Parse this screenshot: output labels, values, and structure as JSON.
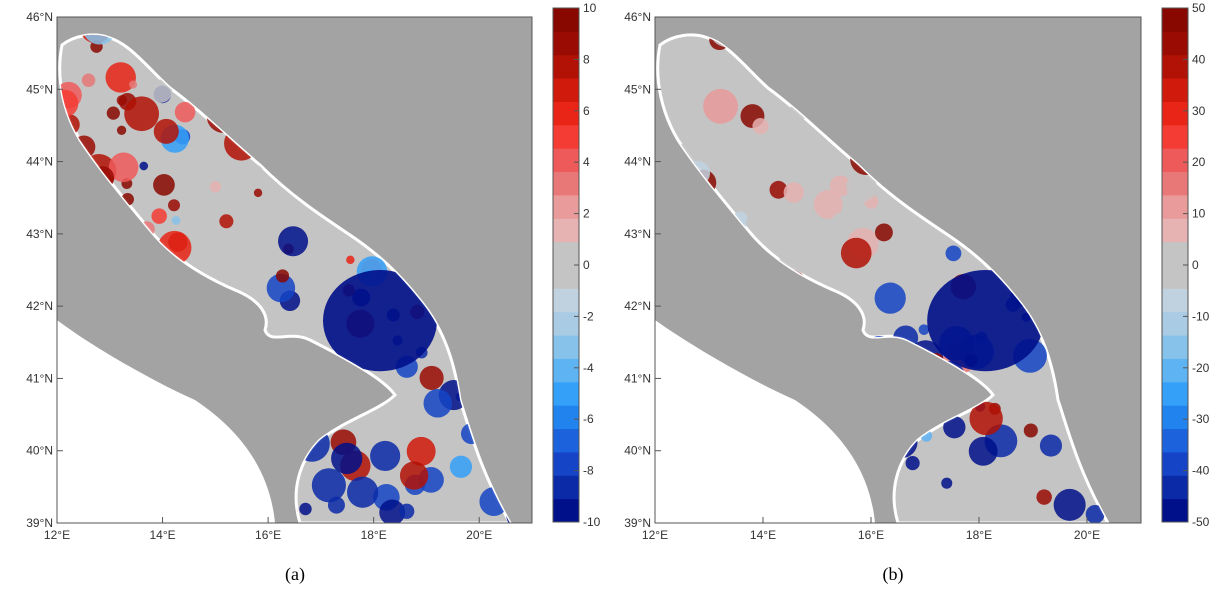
{
  "chart_data": [
    {
      "type": "heatmap",
      "xlim": [
        12,
        21
      ],
      "ylim": [
        39,
        46
      ],
      "x_ticks": [
        "12°E",
        "14°E",
        "16°E",
        "18°E",
        "20°E"
      ],
      "y_ticks": [
        "46°N",
        "45°N",
        "44°N",
        "43°N",
        "42°N",
        "41°N",
        "40°N",
        "39°N"
      ],
      "colorbar": {
        "range": [
          -10,
          10
        ],
        "tick_labels": [
          "10",
          "8",
          "6",
          "4",
          "2",
          "0",
          "-2",
          "-4",
          "-6",
          "-8",
          "-10"
        ],
        "colors": [
          "#00108a",
          "#0a2aa8",
          "#1545c6",
          "#1c62dd",
          "#2083ee",
          "#35a0f8",
          "#5eb3f3",
          "#87c2ea",
          "#a9cbe4",
          "#c0d2e0",
          "#c4c4c4",
          "#c4c4c4",
          "#e6b2b2",
          "#e99a9a",
          "#e87878",
          "#ee5a5a",
          "#f43b34",
          "#e82516",
          "#d01a0b",
          "#b21206",
          "#9a0c03",
          "#880800"
        ]
      },
      "caption": "(a)"
    },
    {
      "type": "heatmap",
      "xlim": [
        12,
        21
      ],
      "ylim": [
        39,
        46
      ],
      "x_ticks": [
        "12°E",
        "14°E",
        "16°E",
        "18°E",
        "20°E"
      ],
      "y_ticks": [
        "46°N",
        "45°N",
        "44°N",
        "43°N",
        "42°N",
        "41°N",
        "40°N",
        "39°N"
      ],
      "colorbar": {
        "range": [
          -50,
          50
        ],
        "tick_labels": [
          "50",
          "40",
          "30",
          "20",
          "10",
          "0",
          "-10",
          "-20",
          "-30",
          "-40",
          "-50"
        ],
        "colors": [
          "#00108a",
          "#0a2aa8",
          "#1545c6",
          "#1c62dd",
          "#2083ee",
          "#35a0f8",
          "#5eb3f3",
          "#87c2ea",
          "#a9cbe4",
          "#c0d2e0",
          "#c4c4c4",
          "#c4c4c4",
          "#e6b2b2",
          "#e99a9a",
          "#e87878",
          "#ee5a5a",
          "#f43b34",
          "#e82516",
          "#d01a0b",
          "#b21206",
          "#9a0c03",
          "#880800"
        ]
      },
      "caption": "(b)"
    }
  ],
  "colors": {
    "land": "#a3a3a3",
    "italy_land": "#ffffff",
    "coast_stroke": "#111111",
    "frame": "#555555"
  }
}
